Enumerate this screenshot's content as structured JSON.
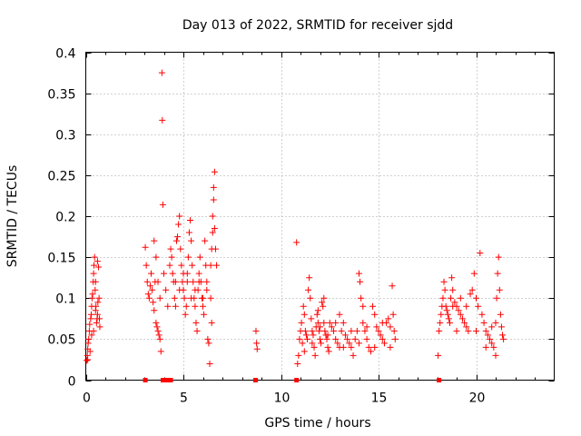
{
  "chart_data": {
    "type": "scatter",
    "title": "Day 013 of 2022, SRMTID for receiver sjdd",
    "xlabel": "GPS time / hours",
    "ylabel": "SRMTID / TECUs",
    "xlim": [
      0,
      24
    ],
    "ylim": [
      0,
      0.4
    ],
    "x_ticks": [
      0,
      5,
      10,
      15,
      20
    ],
    "x_tick_labels": [
      "0",
      "5",
      "10",
      "15",
      "20"
    ],
    "y_ticks": [
      0,
      0.05,
      0.1,
      0.15,
      0.2,
      0.25,
      0.3,
      0.35,
      0.4
    ],
    "y_tick_labels": [
      "0",
      "0.05",
      "0.1",
      "0.15",
      "0.2",
      "0.25",
      "0.3",
      "0.35",
      "0.4"
    ],
    "grid": true,
    "marker": "+",
    "color": "#ff0000",
    "baseline_markers": {
      "marker": "square",
      "y": 0,
      "x": [
        3.05,
        3.95,
        4.05,
        4.15,
        4.35,
        8.7,
        10.8,
        18.1
      ]
    },
    "series": [
      {
        "name": "SRMTID",
        "points": [
          [
            0.05,
            0.024
          ],
          [
            0.08,
            0.03
          ],
          [
            0.1,
            0.038
          ],
          [
            0.12,
            0.045
          ],
          [
            0.15,
            0.05
          ],
          [
            0.18,
            0.06
          ],
          [
            0.2,
            0.068
          ],
          [
            0.22,
            0.035
          ],
          [
            0.25,
            0.075
          ],
          [
            0.28,
            0.08
          ],
          [
            0.3,
            0.09
          ],
          [
            0.32,
            0.1
          ],
          [
            0.35,
            0.105
          ],
          [
            0.38,
            0.12
          ],
          [
            0.4,
            0.13
          ],
          [
            0.42,
            0.14
          ],
          [
            0.45,
            0.15
          ],
          [
            0.48,
            0.11
          ],
          [
            0.5,
            0.085
          ],
          [
            0.52,
            0.09
          ],
          [
            0.55,
            0.07
          ],
          [
            0.58,
            0.075
          ],
          [
            0.6,
            0.08
          ],
          [
            0.62,
            0.095
          ],
          [
            0.65,
            0.138
          ],
          [
            0.68,
            0.1
          ],
          [
            0.7,
            0.075
          ],
          [
            0.72,
            0.065
          ],
          [
            0.1,
            0.025
          ],
          [
            0.3,
            0.055
          ],
          [
            0.4,
            0.06
          ],
          [
            0.5,
            0.12
          ],
          [
            0.6,
            0.145
          ],
          [
            3.05,
            0.162
          ],
          [
            3.1,
            0.14
          ],
          [
            3.15,
            0.12
          ],
          [
            3.2,
            0.105
          ],
          [
            3.25,
            0.1
          ],
          [
            3.3,
            0.115
          ],
          [
            3.35,
            0.13
          ],
          [
            3.4,
            0.11
          ],
          [
            3.45,
            0.095
          ],
          [
            3.5,
            0.085
          ],
          [
            3.55,
            0.12
          ],
          [
            3.6,
            0.07
          ],
          [
            3.65,
            0.065
          ],
          [
            3.7,
            0.06
          ],
          [
            3.75,
            0.055
          ],
          [
            3.8,
            0.05
          ],
          [
            3.85,
            0.035
          ],
          [
            3.9,
            0.375
          ],
          [
            3.92,
            0.317
          ],
          [
            3.95,
            0.214
          ],
          [
            3.5,
            0.17
          ],
          [
            3.6,
            0.15
          ],
          [
            3.7,
            0.12
          ],
          [
            3.8,
            0.1
          ],
          [
            4.0,
            0.13
          ],
          [
            4.1,
            0.11
          ],
          [
            4.2,
            0.09
          ],
          [
            4.3,
            0.14
          ],
          [
            4.35,
            0.16
          ],
          [
            4.4,
            0.15
          ],
          [
            4.45,
            0.13
          ],
          [
            4.5,
            0.12
          ],
          [
            4.55,
            0.1
          ],
          [
            4.6,
            0.09
          ],
          [
            4.65,
            0.17
          ],
          [
            4.7,
            0.175
          ],
          [
            4.75,
            0.19
          ],
          [
            4.8,
            0.2
          ],
          [
            4.85,
            0.16
          ],
          [
            4.9,
            0.14
          ],
          [
            4.95,
            0.12
          ],
          [
            5.0,
            0.11
          ],
          [
            5.05,
            0.1
          ],
          [
            5.1,
            0.08
          ],
          [
            5.15,
            0.09
          ],
          [
            5.2,
            0.13
          ],
          [
            5.25,
            0.15
          ],
          [
            5.3,
            0.18
          ],
          [
            5.35,
            0.195
          ],
          [
            5.4,
            0.17
          ],
          [
            5.45,
            0.14
          ],
          [
            5.5,
            0.12
          ],
          [
            5.55,
            0.1
          ],
          [
            5.6,
            0.09
          ],
          [
            5.65,
            0.07
          ],
          [
            5.7,
            0.06
          ],
          [
            5.75,
            0.11
          ],
          [
            5.8,
            0.13
          ],
          [
            5.85,
            0.15
          ],
          [
            5.9,
            0.12
          ],
          [
            5.95,
            0.1
          ],
          [
            6.0,
            0.09
          ],
          [
            6.05,
            0.08
          ],
          [
            6.1,
            0.17
          ],
          [
            6.15,
            0.14
          ],
          [
            6.2,
            0.12
          ],
          [
            6.25,
            0.05
          ],
          [
            6.3,
            0.045
          ],
          [
            6.35,
            0.02
          ],
          [
            6.4,
            0.14
          ],
          [
            6.45,
            0.16
          ],
          [
            6.5,
            0.18
          ],
          [
            6.5,
            0.2
          ],
          [
            6.55,
            0.22
          ],
          [
            6.55,
            0.235
          ],
          [
            6.6,
            0.254
          ],
          [
            6.6,
            0.185
          ],
          [
            6.65,
            0.16
          ],
          [
            6.7,
            0.14
          ],
          [
            6.45,
            0.07
          ],
          [
            6.4,
            0.1
          ],
          [
            4.6,
            0.12
          ],
          [
            4.8,
            0.11
          ],
          [
            5.0,
            0.13
          ],
          [
            5.2,
            0.12
          ],
          [
            5.4,
            0.1
          ],
          [
            5.6,
            0.11
          ],
          [
            5.8,
            0.12
          ],
          [
            6.0,
            0.1
          ],
          [
            6.2,
            0.11
          ],
          [
            8.72,
            0.06
          ],
          [
            8.75,
            0.045
          ],
          [
            8.78,
            0.038
          ],
          [
            10.8,
            0.168
          ],
          [
            10.85,
            0.02
          ],
          [
            10.9,
            0.03
          ],
          [
            10.95,
            0.05
          ],
          [
            11.0,
            0.06
          ],
          [
            11.05,
            0.07
          ],
          [
            11.1,
            0.045
          ],
          [
            11.15,
            0.09
          ],
          [
            11.2,
            0.08
          ],
          [
            11.25,
            0.06
          ],
          [
            11.3,
            0.055
          ],
          [
            11.35,
            0.05
          ],
          [
            11.4,
            0.11
          ],
          [
            11.45,
            0.125
          ],
          [
            11.5,
            0.1
          ],
          [
            11.55,
            0.075
          ],
          [
            11.6,
            0.06
          ],
          [
            11.65,
            0.055
          ],
          [
            11.7,
            0.04
          ],
          [
            11.75,
            0.03
          ],
          [
            11.8,
            0.065
          ],
          [
            11.85,
            0.08
          ],
          [
            11.9,
            0.07
          ],
          [
            11.95,
            0.06
          ],
          [
            12.0,
            0.05
          ],
          [
            12.05,
            0.045
          ],
          [
            12.1,
            0.095
          ],
          [
            12.15,
            0.09
          ],
          [
            12.2,
            0.07
          ],
          [
            12.25,
            0.06
          ],
          [
            12.3,
            0.055
          ],
          [
            12.35,
            0.05
          ],
          [
            12.4,
            0.04
          ],
          [
            12.45,
            0.035
          ],
          [
            12.5,
            0.07
          ],
          [
            12.6,
            0.065
          ],
          [
            12.7,
            0.06
          ],
          [
            12.8,
            0.05
          ],
          [
            12.9,
            0.045
          ],
          [
            13.0,
            0.04
          ],
          [
            13.1,
            0.06
          ],
          [
            13.2,
            0.07
          ],
          [
            13.3,
            0.055
          ],
          [
            13.4,
            0.05
          ],
          [
            13.5,
            0.045
          ],
          [
            13.6,
            0.04
          ],
          [
            13.7,
            0.03
          ],
          [
            13.8,
            0.05
          ],
          [
            13.9,
            0.06
          ],
          [
            14.0,
            0.13
          ],
          [
            14.05,
            0.12
          ],
          [
            14.1,
            0.1
          ],
          [
            14.2,
            0.07
          ],
          [
            14.3,
            0.06
          ],
          [
            14.4,
            0.05
          ],
          [
            14.5,
            0.04
          ],
          [
            14.6,
            0.035
          ],
          [
            14.7,
            0.09
          ],
          [
            14.8,
            0.08
          ],
          [
            14.9,
            0.065
          ],
          [
            15.0,
            0.06
          ],
          [
            15.1,
            0.055
          ],
          [
            15.2,
            0.05
          ],
          [
            15.3,
            0.045
          ],
          [
            15.4,
            0.07
          ],
          [
            15.5,
            0.075
          ],
          [
            15.6,
            0.065
          ],
          [
            15.7,
            0.115
          ],
          [
            15.75,
            0.08
          ],
          [
            15.8,
            0.06
          ],
          [
            15.85,
            0.05
          ],
          [
            11.2,
            0.035
          ],
          [
            11.6,
            0.045
          ],
          [
            12.0,
            0.065
          ],
          [
            12.4,
            0.055
          ],
          [
            12.8,
            0.07
          ],
          [
            13.2,
            0.04
          ],
          [
            13.6,
            0.06
          ],
          [
            14.0,
            0.045
          ],
          [
            14.4,
            0.065
          ],
          [
            14.8,
            0.04
          ],
          [
            15.2,
            0.07
          ],
          [
            15.6,
            0.04
          ],
          [
            13.0,
            0.08
          ],
          [
            14.2,
            0.09
          ],
          [
            12.2,
            0.1
          ],
          [
            11.9,
            0.085
          ],
          [
            18.05,
            0.03
          ],
          [
            18.1,
            0.06
          ],
          [
            18.15,
            0.07
          ],
          [
            18.2,
            0.08
          ],
          [
            18.25,
            0.09
          ],
          [
            18.3,
            0.1
          ],
          [
            18.35,
            0.12
          ],
          [
            18.4,
            0.11
          ],
          [
            18.45,
            0.09
          ],
          [
            18.5,
            0.085
          ],
          [
            18.55,
            0.08
          ],
          [
            18.6,
            0.075
          ],
          [
            18.65,
            0.07
          ],
          [
            18.7,
            0.1
          ],
          [
            18.75,
            0.125
          ],
          [
            18.8,
            0.11
          ],
          [
            18.9,
            0.095
          ],
          [
            19.0,
            0.09
          ],
          [
            19.1,
            0.085
          ],
          [
            19.2,
            0.08
          ],
          [
            19.3,
            0.075
          ],
          [
            19.4,
            0.07
          ],
          [
            19.5,
            0.065
          ],
          [
            19.6,
            0.06
          ],
          [
            19.7,
            0.105
          ],
          [
            19.8,
            0.11
          ],
          [
            19.9,
            0.13
          ],
          [
            20.0,
            0.1
          ],
          [
            20.1,
            0.09
          ],
          [
            20.2,
            0.155
          ],
          [
            20.3,
            0.08
          ],
          [
            20.4,
            0.07
          ],
          [
            20.5,
            0.06
          ],
          [
            20.6,
            0.055
          ],
          [
            20.7,
            0.05
          ],
          [
            20.8,
            0.045
          ],
          [
            20.9,
            0.04
          ],
          [
            21.0,
            0.07
          ],
          [
            21.05,
            0.1
          ],
          [
            21.1,
            0.13
          ],
          [
            21.15,
            0.15
          ],
          [
            21.2,
            0.11
          ],
          [
            21.25,
            0.08
          ],
          [
            21.3,
            0.065
          ],
          [
            21.35,
            0.055
          ],
          [
            21.4,
            0.05
          ],
          [
            19.0,
            0.06
          ],
          [
            19.5,
            0.09
          ],
          [
            20.0,
            0.06
          ],
          [
            20.5,
            0.04
          ],
          [
            21.0,
            0.03
          ],
          [
            20.8,
            0.065
          ],
          [
            19.2,
            0.1
          ],
          [
            18.8,
            0.09
          ]
        ]
      }
    ]
  }
}
